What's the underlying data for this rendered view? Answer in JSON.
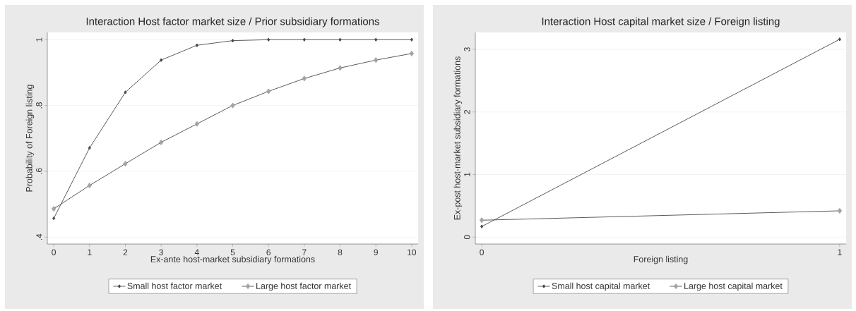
{
  "chart_data": [
    {
      "type": "line",
      "title": "Interaction Host factor market size / Prior subsidiary formations",
      "xlabel": "Ex-ante host-market subsidiary formations",
      "ylabel": "Probability of Foreign listing",
      "x": [
        0,
        1,
        2,
        3,
        4,
        5,
        6,
        7,
        8,
        9,
        10
      ],
      "series": [
        {
          "name": "Small host factor market",
          "color": "#474747",
          "values": [
            0.457,
            0.671,
            0.84,
            0.938,
            0.983,
            0.997,
            1.0,
            1.0,
            1.0,
            1.0,
            1.0
          ]
        },
        {
          "name": "Large host factor market",
          "color": "#a3a3a3",
          "values": [
            0.486,
            0.557,
            0.623,
            0.688,
            0.744,
            0.8,
            0.843,
            0.882,
            0.914,
            0.938,
            0.958
          ]
        }
      ],
      "xlim": [
        -0.18,
        10.18
      ],
      "ylim": [
        0.379,
        1.022
      ],
      "xticks": [
        0,
        1,
        2,
        3,
        4,
        5,
        6,
        7,
        8,
        9,
        10
      ],
      "yticks": [
        {
          "value": 0.4,
          "label": ".4"
        },
        {
          "value": 0.6,
          "label": ".6"
        },
        {
          "value": 0.8,
          "label": ".8"
        },
        1
      ],
      "grid": "y",
      "legend": "bottom",
      "marker": "diamond",
      "line_style": "solid"
    },
    {
      "type": "line",
      "title": "Interaction Host capital market size / Foreign listing",
      "xlabel": "Foreign listing",
      "ylabel": "Ex-post host-market subsidiary formations",
      "x": [
        0,
        1
      ],
      "series": [
        {
          "name": "Small host capital market",
          "color": "#474747",
          "values": [
            0.17,
            3.16
          ]
        },
        {
          "name": "Large host capital market",
          "color": "#a3a3a3",
          "values": [
            0.27,
            0.42
          ]
        }
      ],
      "xlim": [
        -0.018,
        1.018
      ],
      "ylim": [
        -0.11,
        3.27
      ],
      "xticks": [
        0,
        1
      ],
      "yticks": [
        0,
        1,
        2,
        3
      ],
      "grid": "y",
      "legend": "bottom",
      "marker": "diamond",
      "line_style": "solid"
    }
  ]
}
